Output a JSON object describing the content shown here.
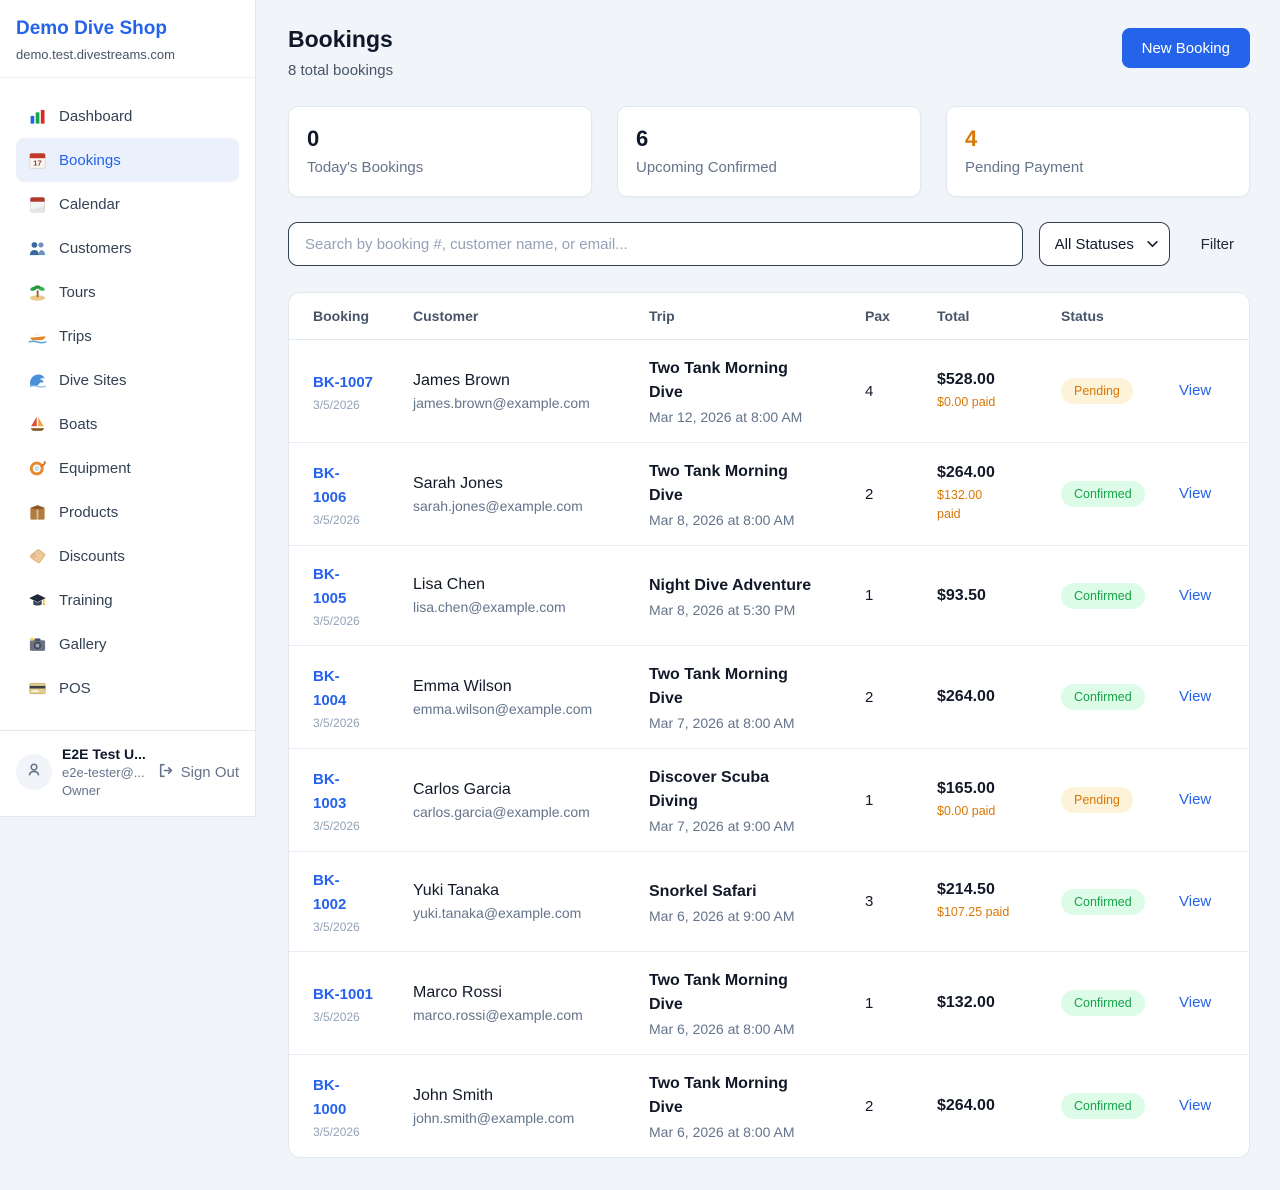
{
  "colors": {
    "accent": "#2563eb",
    "orange": "#d97706",
    "green": "#16a34a"
  },
  "brand": {
    "name": "Demo Dive Shop",
    "domain": "demo.test.divestreams.com"
  },
  "sidebar": {
    "items": [
      {
        "icon": "bar-chart-icon",
        "label": "Dashboard",
        "active": false
      },
      {
        "icon": "calendar-17-icon",
        "label": "Bookings",
        "active": true
      },
      {
        "icon": "calendar-icon",
        "label": "Calendar",
        "active": false
      },
      {
        "icon": "people-icon",
        "label": "Customers",
        "active": false
      },
      {
        "icon": "island-icon",
        "label": "Tours",
        "active": false
      },
      {
        "icon": "speedboat-icon",
        "label": "Trips",
        "active": false
      },
      {
        "icon": "wave-icon",
        "label": "Dive Sites",
        "active": false
      },
      {
        "icon": "sailboat-icon",
        "label": "Boats",
        "active": false
      },
      {
        "icon": "dive-mask-icon",
        "label": "Equipment",
        "active": false
      },
      {
        "icon": "package-icon",
        "label": "Products",
        "active": false
      },
      {
        "icon": "tag-icon",
        "label": "Discounts",
        "active": false
      },
      {
        "icon": "grad-cap-icon",
        "label": "Training",
        "active": false
      },
      {
        "icon": "camera-icon",
        "label": "Gallery",
        "active": false
      },
      {
        "icon": "credit-card-icon",
        "label": "POS",
        "active": false
      }
    ],
    "user": {
      "name": "E2E Test U...",
      "email": "e2e-tester@...",
      "role": "Owner",
      "sign_out": "Sign Out"
    }
  },
  "header": {
    "title": "Bookings",
    "subtitle": "8 total bookings",
    "new_booking": "New Booking"
  },
  "stats": [
    {
      "value": "0",
      "label": "Today's Bookings",
      "highlight": false
    },
    {
      "value": "6",
      "label": "Upcoming Confirmed",
      "highlight": false
    },
    {
      "value": "4",
      "label": "Pending Payment",
      "highlight": true
    }
  ],
  "filters": {
    "search_placeholder": "Search by booking #, customer name, or email...",
    "status_selected": "All Statuses",
    "filter_label": "Filter"
  },
  "table": {
    "columns": [
      "Booking",
      "Customer",
      "Trip",
      "Pax",
      "Total",
      "Status",
      ""
    ],
    "rows": [
      {
        "id": "BK-1007",
        "date": "3/5/2026",
        "customer": "James Brown",
        "email": "james.brown@example.com",
        "trip": "Two Tank Morning\nDive",
        "trip_date": "Mar 12, 2026 at 8:00 AM",
        "pax": "4",
        "total": "$528.00",
        "paid": "$0.00 paid",
        "status": "Pending",
        "action": "View"
      },
      {
        "id": "BK-\n1006",
        "date": "3/5/2026",
        "customer": "Sarah Jones",
        "email": "sarah.jones@example.com",
        "trip": "Two Tank Morning\nDive",
        "trip_date": "Mar 8, 2026 at 8:00 AM",
        "pax": "2",
        "total": "$264.00",
        "paid": "$132.00\npaid",
        "status": "Confirmed",
        "action": "View"
      },
      {
        "id": "BK-\n1005",
        "date": "3/5/2026",
        "customer": "Lisa Chen",
        "email": "lisa.chen@example.com",
        "trip": "Night Dive Adventure",
        "trip_date": "Mar 8, 2026 at 5:30 PM",
        "pax": "1",
        "total": "$93.50",
        "paid": "",
        "status": "Confirmed",
        "action": "View"
      },
      {
        "id": "BK-\n1004",
        "date": "3/5/2026",
        "customer": "Emma Wilson",
        "email": "emma.wilson@example.com",
        "trip": "Two Tank Morning\nDive",
        "trip_date": "Mar 7, 2026 at 8:00 AM",
        "pax": "2",
        "total": "$264.00",
        "paid": "",
        "status": "Confirmed",
        "action": "View"
      },
      {
        "id": "BK-\n1003",
        "date": "3/5/2026",
        "customer": "Carlos Garcia",
        "email": "carlos.garcia@example.com",
        "trip": "Discover Scuba\nDiving",
        "trip_date": "Mar 7, 2026 at 9:00 AM",
        "pax": "1",
        "total": "$165.00",
        "paid": "$0.00 paid",
        "status": "Pending",
        "action": "View"
      },
      {
        "id": "BK-\n1002",
        "date": "3/5/2026",
        "customer": "Yuki Tanaka",
        "email": "yuki.tanaka@example.com",
        "trip": "Snorkel Safari",
        "trip_date": "Mar 6, 2026 at 9:00 AM",
        "pax": "3",
        "total": "$214.50",
        "paid": "$107.25 paid",
        "status": "Confirmed",
        "action": "View"
      },
      {
        "id": "BK-1001",
        "date": "3/5/2026",
        "customer": "Marco Rossi",
        "email": "marco.rossi@example.com",
        "trip": "Two Tank Morning\nDive",
        "trip_date": "Mar 6, 2026 at 8:00 AM",
        "pax": "1",
        "total": "$132.00",
        "paid": "",
        "status": "Confirmed",
        "action": "View"
      },
      {
        "id": "BK-\n1000",
        "date": "3/5/2026",
        "customer": "John Smith",
        "email": "john.smith@example.com",
        "trip": "Two Tank Morning\nDive",
        "trip_date": "Mar 6, 2026 at 8:00 AM",
        "pax": "2",
        "total": "$264.00",
        "paid": "",
        "status": "Confirmed",
        "action": "View"
      }
    ]
  }
}
